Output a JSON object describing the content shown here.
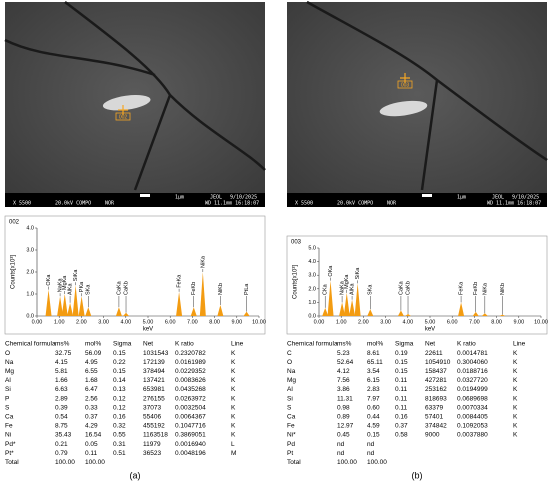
{
  "panels": [
    {
      "caption": "(a)",
      "sem": {
        "marker": "002",
        "info": [
          "X 5500",
          "20.0kV COMPO",
          "NOR",
          "1μm",
          "JEOL",
          "9/10/2025",
          "WD 11.1mm 16:18:07"
        ]
      },
      "spectrum": {
        "type": "bar",
        "title": "002",
        "ylabel": "Counts[x10³]",
        "xlabel": "keV",
        "xlim": [
          0,
          10
        ],
        "ylim": [
          0,
          4
        ],
        "xticks": [
          {
            "value": 0,
            "label": "0.00"
          },
          {
            "value": 1,
            "label": "1.00"
          },
          {
            "value": 2,
            "label": "2.00"
          },
          {
            "value": 3,
            "label": "3.00"
          },
          {
            "value": 4,
            "label": "4.00"
          },
          {
            "value": 5,
            "label": "5.00"
          },
          {
            "value": 6,
            "label": "6.00"
          },
          {
            "value": 7,
            "label": "7.00"
          },
          {
            "value": 8,
            "label": "8.00"
          },
          {
            "value": 9,
            "label": "9.00"
          },
          {
            "value": 10,
            "label": "10.00"
          }
        ],
        "yticks": [
          {
            "value": 0,
            "label": "0.0"
          },
          {
            "value": 1,
            "label": "1.0"
          },
          {
            "value": 2,
            "label": "2.0"
          },
          {
            "value": 3,
            "label": "3.0"
          },
          {
            "value": 4,
            "label": "4.0"
          }
        ],
        "color": "#f39c12",
        "peaks": [
          {
            "label": "OKa",
            "kev": 0.52,
            "counts": 1.2
          },
          {
            "label": "NaKa",
            "kev": 1.04,
            "counts": 0.9
          },
          {
            "label": "MgKa",
            "kev": 1.25,
            "counts": 1.0
          },
          {
            "label": "AlKa",
            "kev": 1.49,
            "counts": 0.6
          },
          {
            "label": "SiKa",
            "kev": 1.74,
            "counts": 1.4
          },
          {
            "label": "PKa",
            "kev": 2.01,
            "counts": 0.9
          },
          {
            "label": "SKa",
            "kev": 2.31,
            "counts": 0.4
          },
          {
            "label": "CaKa",
            "kev": 3.69,
            "counts": 0.4
          },
          {
            "label": "CaKb",
            "kev": 4.01,
            "counts": 0.15
          },
          {
            "label": "FeKa",
            "kev": 6.4,
            "counts": 1.1
          },
          {
            "label": "FeKb",
            "kev": 7.06,
            "counts": 0.4
          },
          {
            "label": "NiKa",
            "kev": 7.47,
            "counts": 2.0
          },
          {
            "label": "NiKb",
            "kev": 8.26,
            "counts": 0.5
          },
          {
            "label": "PtLa",
            "kev": 9.44,
            "counts": 0.2
          }
        ]
      },
      "table": {
        "header": [
          "Chemical formula",
          "ms%",
          "mol%",
          "Sigma",
          "Net",
          "K ratio",
          "Line"
        ],
        "rows": [
          [
            "O",
            "32.75",
            "56.09",
            "0.15",
            "1031543",
            "0.2320782",
            "K"
          ],
          [
            "Na",
            "4.15",
            "4.95",
            "0.22",
            "172139",
            "0.0161989",
            "K"
          ],
          [
            "Mg",
            "5.81",
            "6.55",
            "0.15",
            "378494",
            "0.0229352",
            "K"
          ],
          [
            "Al",
            "1.66",
            "1.68",
            "0.14",
            "137421",
            "0.0083626",
            "K"
          ],
          [
            "Si",
            "6.63",
            "6.47",
            "0.13",
            "653981",
            "0.0435268",
            "K"
          ],
          [
            "P",
            "2.89",
            "2.56",
            "0.12",
            "276155",
            "0.0263972",
            "K"
          ],
          [
            "S",
            "0.39",
            "0.33",
            "0.12",
            "37073",
            "0.0032504",
            "K"
          ],
          [
            "Ca",
            "0.54",
            "0.37",
            "0.16",
            "55406",
            "0.0064367",
            "K"
          ],
          [
            "Fe",
            "8.75",
            "4.29",
            "0.32",
            "455192",
            "0.1047716",
            "K"
          ],
          [
            "Ni",
            "35.43",
            "16.54",
            "0.55",
            "1163518",
            "0.3869051",
            "K"
          ],
          [
            "Pd*",
            "0.21",
            "0.05",
            "0.31",
            "11979",
            "0.0016940",
            "L"
          ],
          [
            "Pt*",
            "0.79",
            "0.11",
            "0.51",
            "36523",
            "0.0048196",
            "M"
          ],
          [
            "Total",
            "100.00",
            "100.00"
          ]
        ]
      }
    },
    {
      "caption": "(b)",
      "sem": {
        "marker": "003",
        "info": [
          "X 5500",
          "20.0kV COMPO",
          "NOR",
          "1μm",
          "JEOL",
          "9/10/2025",
          "WD 11.1mm 16:18:07"
        ]
      },
      "spectrum": {
        "type": "bar",
        "title": "003",
        "ylabel": "Counts[x10³]",
        "xlabel": "keV",
        "xlim": [
          0,
          10
        ],
        "ylim": [
          0,
          5
        ],
        "xticks": [
          {
            "value": 0,
            "label": "0.00"
          },
          {
            "value": 1,
            "label": "1.00"
          },
          {
            "value": 2,
            "label": "2.00"
          },
          {
            "value": 3,
            "label": "3.00"
          },
          {
            "value": 4,
            "label": "4.00"
          },
          {
            "value": 5,
            "label": "5.00"
          },
          {
            "value": 6,
            "label": "6.00"
          },
          {
            "value": 7,
            "label": "7.00"
          },
          {
            "value": 8,
            "label": "8.00"
          },
          {
            "value": 9,
            "label": "9.00"
          },
          {
            "value": 10,
            "label": "10.00"
          }
        ],
        "yticks": [
          {
            "value": 0,
            "label": "0.0"
          },
          {
            "value": 1,
            "label": "1.0"
          },
          {
            "value": 2,
            "label": "2.0"
          },
          {
            "value": 3,
            "label": "3.0"
          },
          {
            "value": 4,
            "label": "4.0"
          },
          {
            "value": 5,
            "label": "5.0"
          }
        ],
        "color": "#f39c12",
        "peaks": [
          {
            "label": "CKa",
            "kev": 0.28,
            "counts": 0.6
          },
          {
            "label": "OKa",
            "kev": 0.52,
            "counts": 2.6
          },
          {
            "label": "NaKa",
            "kev": 1.04,
            "counts": 1.0
          },
          {
            "label": "MgKa",
            "kev": 1.25,
            "counts": 1.7
          },
          {
            "label": "AlKa",
            "kev": 1.49,
            "counts": 1.2
          },
          {
            "label": "SiKa",
            "kev": 1.74,
            "counts": 2.4
          },
          {
            "label": "SKa",
            "kev": 2.31,
            "counts": 0.5
          },
          {
            "label": "CaKa",
            "kev": 3.69,
            "counts": 0.4
          },
          {
            "label": "CaKb",
            "kev": 4.01,
            "counts": 0.15
          },
          {
            "label": "FeKa",
            "kev": 6.4,
            "counts": 1.0
          },
          {
            "label": "FeKb",
            "kev": 7.06,
            "counts": 0.3
          },
          {
            "label": "NiKa",
            "kev": 7.47,
            "counts": 0.2
          },
          {
            "label": "NiKb",
            "kev": 8.26,
            "counts": 0.1
          }
        ]
      },
      "table": {
        "header": [
          "Chemical formula",
          "ms%",
          "mol%",
          "Sigma",
          "Net",
          "K ratio",
          "Line"
        ],
        "rows": [
          [
            "C",
            "5.23",
            "8.61",
            "0.19",
            "22611",
            "0.0014781",
            "K"
          ],
          [
            "O",
            "52.64",
            "65.11",
            "0.15",
            "1054910",
            "0.3004060",
            "K"
          ],
          [
            "Na",
            "4.12",
            "3.54",
            "0.15",
            "158437",
            "0.0188716",
            "K"
          ],
          [
            "Mg",
            "7.56",
            "6.15",
            "0.11",
            "427281",
            "0.0327720",
            "K"
          ],
          [
            "Al",
            "3.86",
            "2.83",
            "0.11",
            "253162",
            "0.0194999",
            "K"
          ],
          [
            "Si",
            "11.31",
            "7.97",
            "0.11",
            "818693",
            "0.0689698",
            "K"
          ],
          [
            "S",
            "0.98",
            "0.60",
            "0.11",
            "63379",
            "0.0070334",
            "K"
          ],
          [
            "Ca",
            "0.89",
            "0.44",
            "0.16",
            "57401",
            "0.0084405",
            "K"
          ],
          [
            "Fe",
            "12.97",
            "4.59",
            "0.37",
            "374842",
            "0.1092053",
            "K"
          ],
          [
            "Ni*",
            "0.45",
            "0.15",
            "0.58",
            "9000",
            "0.0037880",
            "K"
          ],
          [
            "Pd",
            "nd",
            "nd"
          ],
          [
            "Pt",
            "nd",
            "nd"
          ],
          [
            "Total",
            "100.00",
            "100.00"
          ]
        ]
      }
    }
  ]
}
